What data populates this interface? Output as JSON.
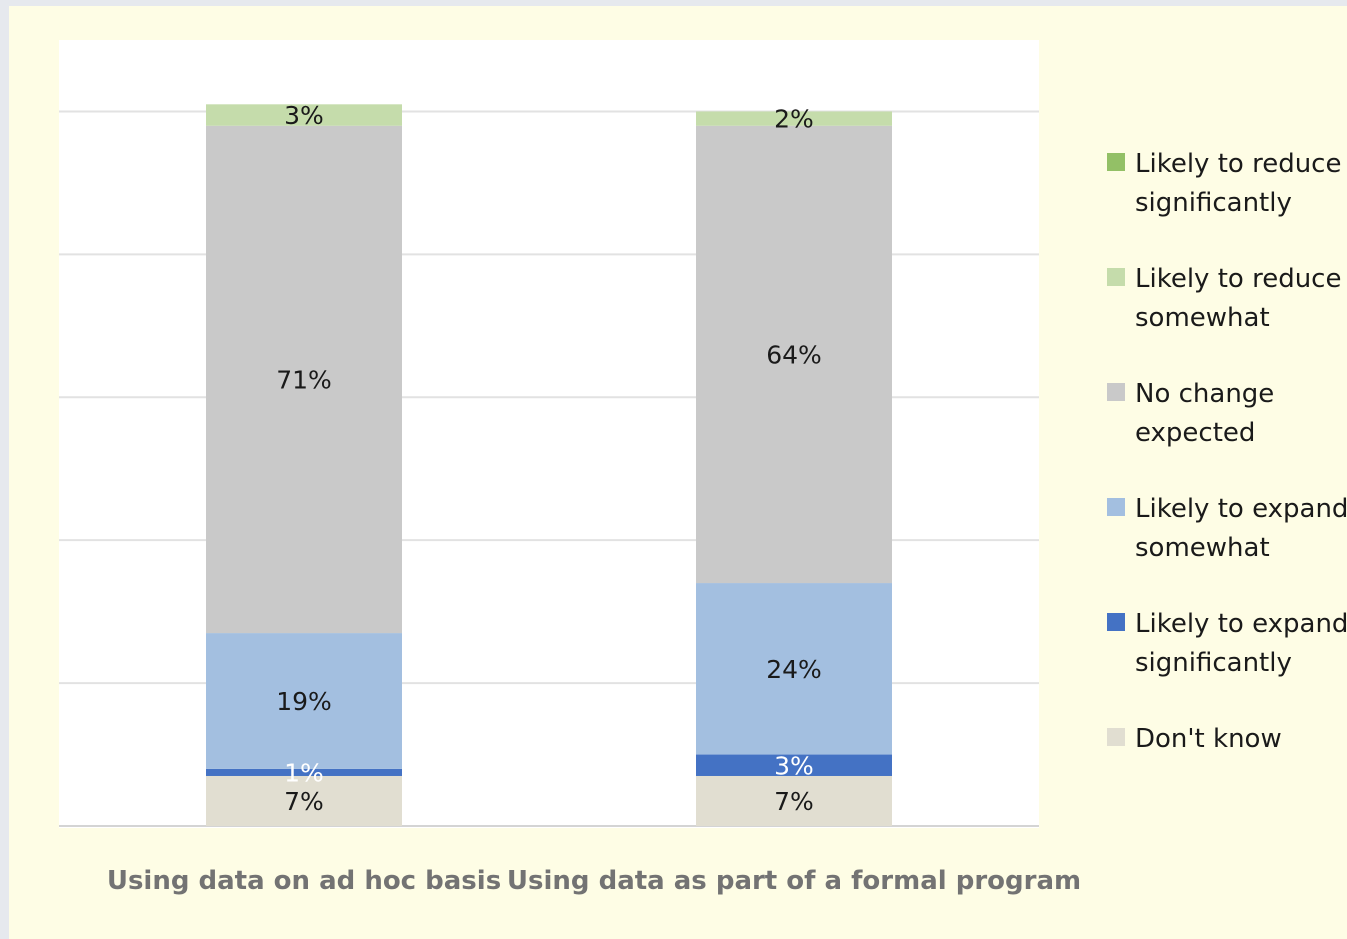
{
  "chart_data": {
    "type": "bar",
    "stacked": true,
    "categories": [
      "Using data on ad hoc basis",
      "Using data as part of a formal program"
    ],
    "ylim": [
      0,
      110
    ],
    "grid": true,
    "legend_position": "right",
    "series": [
      {
        "name": "Don't know",
        "values": [
          7,
          7
        ],
        "labels": [
          "7%",
          "7%"
        ],
        "color": "#e1ded1",
        "label_color": "#1a1a1a"
      },
      {
        "name": "Likely to expand significantly",
        "values": [
          1,
          3
        ],
        "labels": [
          "1%",
          "3%"
        ],
        "color": "#4472c4",
        "label_color": "#ffffff"
      },
      {
        "name": "Likely to expand somewhat",
        "values": [
          19,
          24
        ],
        "labels": [
          "19%",
          "24%"
        ],
        "color": "#a3bfe0",
        "label_color": "#1a1a1a"
      },
      {
        "name": "No change expected",
        "values": [
          71,
          64
        ],
        "labels": [
          "71%",
          "64%"
        ],
        "color": "#c9c9c9",
        "label_color": "#1a1a1a"
      },
      {
        "name": "Likely to reduce somewhat",
        "values": [
          3,
          2
        ],
        "labels": [
          "3%",
          "2%"
        ],
        "color": "#c5dcab",
        "label_color": "#1a1a1a"
      },
      {
        "name": "Likely to reduce significantly",
        "values": [
          0,
          0
        ],
        "labels": [
          "",
          ""
        ],
        "color": "#93c066",
        "label_color": "#1a1a1a"
      }
    ],
    "legend": [
      {
        "lines": [
          "Likely to reduce",
          "significantly"
        ],
        "color": "#93c066"
      },
      {
        "lines": [
          "Likely to reduce",
          "somewhat"
        ],
        "color": "#c5dcab"
      },
      {
        "lines": [
          "No change",
          "expected"
        ],
        "color": "#c9c9c9"
      },
      {
        "lines": [
          "Likely to expand",
          "somewhat"
        ],
        "color": "#a3bfe0"
      },
      {
        "lines": [
          "Likely to expand",
          "significantly"
        ],
        "color": "#4472c4"
      },
      {
        "lines": [
          "Don't know"
        ],
        "color": "#e1ded1"
      }
    ]
  }
}
